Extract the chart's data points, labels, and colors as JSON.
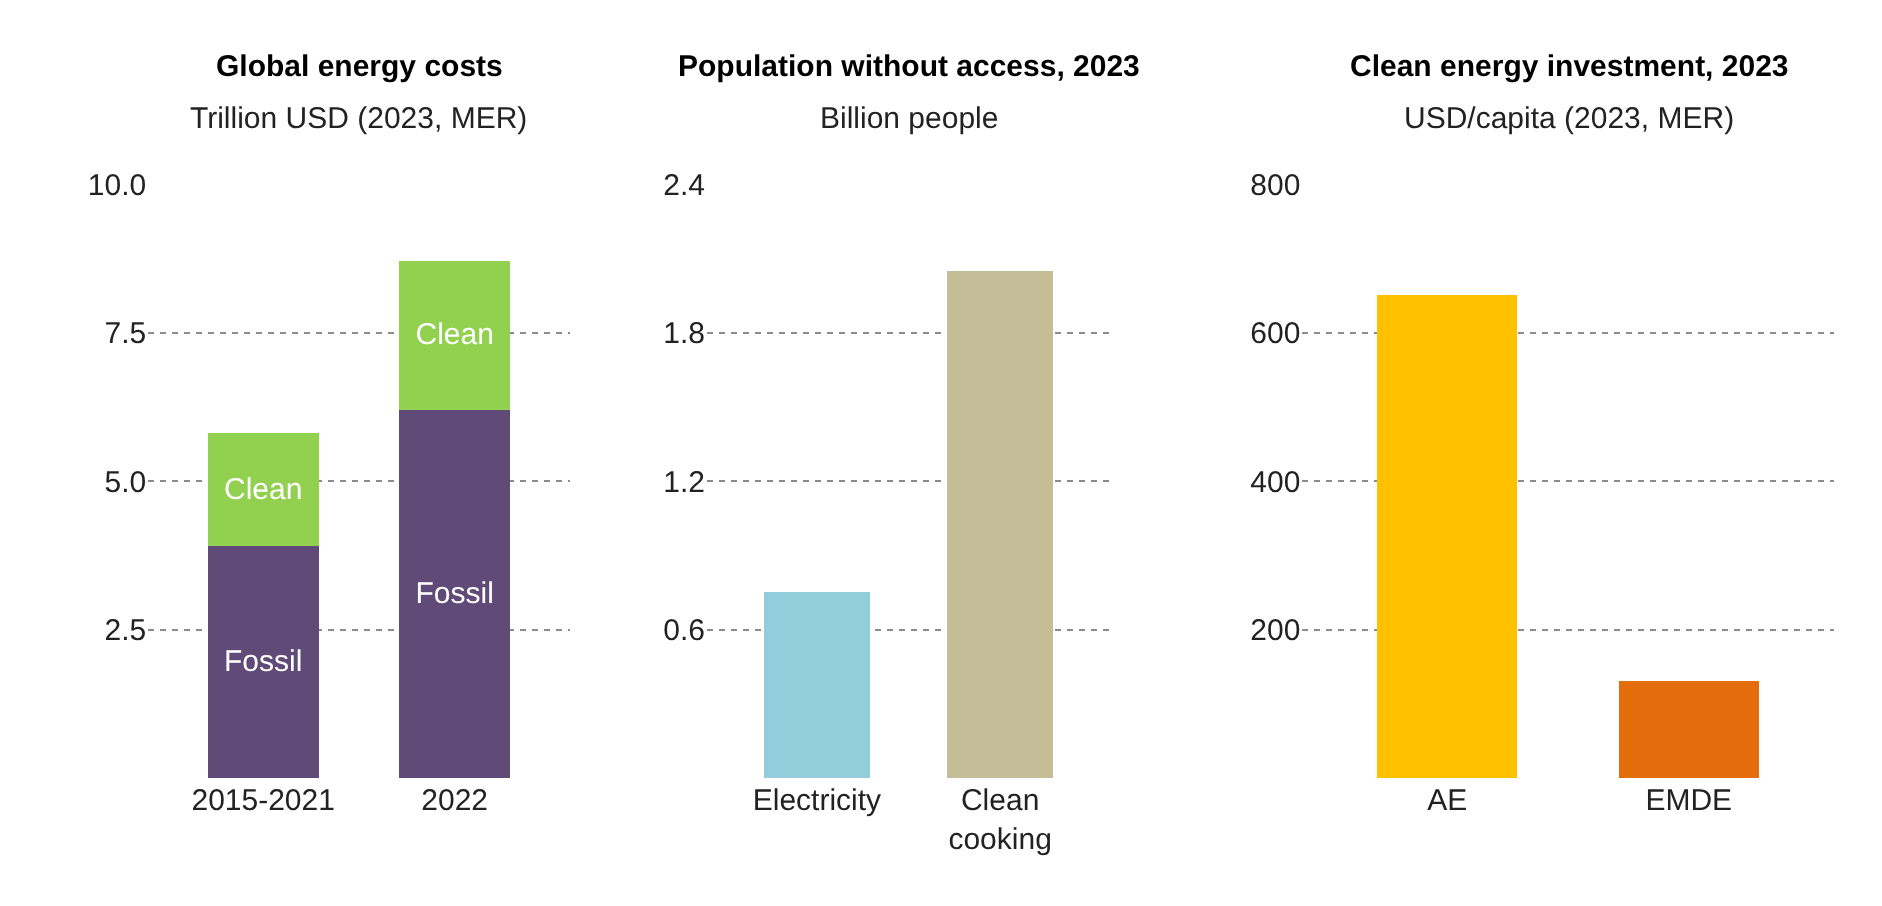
{
  "chart_data": [
    {
      "type": "bar",
      "title": "Global energy costs",
      "subtitle": "Trillion USD (2023, MER)",
      "categories": [
        "2015-2021",
        "2022"
      ],
      "stacked": true,
      "legend": false,
      "grid": "y",
      "ylim": [
        0,
        10
      ],
      "yticks": [
        {
          "value": 2.5,
          "label": "2.5"
        },
        {
          "value": 5,
          "label": "5.0"
        },
        {
          "value": 7.5,
          "label": "7.5"
        },
        {
          "value": 10,
          "label": "10.0"
        }
      ],
      "series": [
        {
          "name": "Fossil",
          "color": "#5f4a78",
          "values": [
            3.9,
            6.2
          ]
        },
        {
          "name": "Clean",
          "color": "#92d050",
          "values": [
            1.9,
            2.5
          ]
        }
      ]
    },
    {
      "type": "bar",
      "title": "Population without access, 2023",
      "subtitle": "Billion people",
      "categories": [
        "Electricity",
        "Clean cooking"
      ],
      "colors": [
        "#92cddc",
        "#c4bd97"
      ],
      "values": [
        0.75,
        2.05
      ],
      "legend": false,
      "grid": "y",
      "ylim": [
        0,
        2.4
      ],
      "yticks": [
        0.6,
        1.2,
        1.8,
        2.4
      ]
    },
    {
      "type": "bar",
      "title": "Clean energy investment, 2023",
      "subtitle": "USD/capita (2023, MER)",
      "categories": [
        "AE",
        "EMDE"
      ],
      "colors": [
        "#ffc000",
        "#e46c0a"
      ],
      "values": [
        650,
        130
      ],
      "legend": false,
      "grid": "y",
      "ylim": [
        0,
        800
      ],
      "yticks": [
        200,
        400,
        600,
        800
      ]
    }
  ]
}
